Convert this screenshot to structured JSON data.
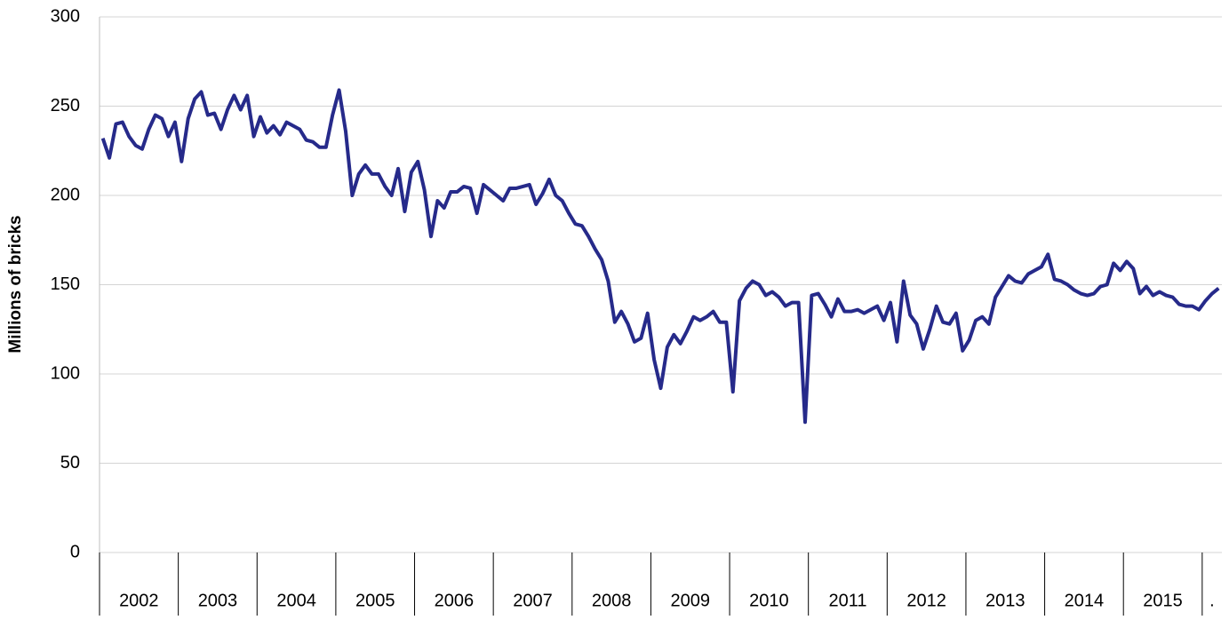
{
  "chart_data": {
    "type": "line",
    "y_label": "Millions of bricks",
    "categories": [
      "2002",
      null,
      null,
      null,
      null,
      null,
      null,
      null,
      null,
      null,
      null,
      null,
      "2003",
      null,
      null,
      null,
      null,
      null,
      null,
      null,
      null,
      null,
      null,
      null,
      "2004",
      null,
      null,
      null,
      null,
      null,
      null,
      null,
      null,
      null,
      null,
      null,
      "2005",
      null,
      null,
      null,
      null,
      null,
      null,
      null,
      null,
      null,
      null,
      null,
      "2006",
      null,
      null,
      null,
      null,
      null,
      null,
      null,
      null,
      null,
      null,
      null,
      "2007",
      null,
      null,
      null,
      null,
      null,
      null,
      null,
      null,
      null,
      null,
      null,
      "2008",
      null,
      null,
      null,
      null,
      null,
      null,
      null,
      null,
      null,
      null,
      null,
      "2009",
      null,
      null,
      null,
      null,
      null,
      null,
      null,
      null,
      null,
      null,
      null,
      "2010",
      null,
      null,
      null,
      null,
      null,
      null,
      null,
      null,
      null,
      null,
      null,
      "2011",
      null,
      null,
      null,
      null,
      null,
      null,
      null,
      null,
      null,
      null,
      null,
      "2012",
      null,
      null,
      null,
      null,
      null,
      null,
      null,
      null,
      null,
      null,
      null,
      "2013",
      null,
      null,
      null,
      null,
      null,
      null,
      null,
      null,
      null,
      null,
      null,
      "2014",
      null,
      null,
      null,
      null,
      null,
      null,
      null,
      null,
      null,
      null,
      null,
      "2015",
      null,
      null,
      null,
      null,
      null,
      null,
      null,
      null,
      null,
      null,
      null,
      ".",
      null,
      null
    ],
    "values": [
      232,
      221,
      240,
      241,
      233,
      228,
      226,
      237,
      245,
      243,
      233,
      241,
      219,
      243,
      254,
      258,
      245,
      246,
      237,
      248,
      256,
      248,
      256,
      233,
      244,
      235,
      239,
      234,
      241,
      239,
      237,
      231,
      230,
      227,
      227,
      245,
      259,
      236,
      200,
      212,
      217,
      212,
      212,
      205,
      200,
      215,
      191,
      213,
      219,
      203,
      177,
      197,
      193,
      202,
      202,
      205,
      204,
      190,
      206,
      203,
      200,
      197,
      204,
      204,
      205,
      206,
      195,
      201,
      209,
      200,
      197,
      190,
      184,
      183,
      177,
      170,
      164,
      152,
      129,
      135,
      128,
      118,
      120,
      134,
      108,
      92,
      115,
      122,
      117,
      124,
      132,
      130,
      132,
      135,
      129,
      129,
      90,
      141,
      148,
      152,
      150,
      144,
      146,
      143,
      138,
      140,
      140,
      73,
      144,
      145,
      139,
      132,
      142,
      135,
      135,
      136,
      134,
      136,
      138,
      130,
      140,
      118,
      152,
      133,
      128,
      114,
      125,
      138,
      129,
      128,
      134,
      113,
      119,
      130,
      132,
      128,
      143,
      149,
      155,
      152,
      151,
      156,
      158,
      160,
      167,
      153,
      152,
      150,
      147,
      145,
      144,
      145,
      149,
      150,
      162,
      158,
      163,
      159,
      145,
      149,
      144,
      146,
      144,
      143,
      139,
      138,
      138,
      136,
      141,
      145,
      148
    ],
    "color": "#262a8a",
    "ylim": [
      0,
      300
    ],
    "yticks": [
      0,
      50,
      100,
      150,
      200,
      250,
      300
    ],
    "grid": true
  }
}
